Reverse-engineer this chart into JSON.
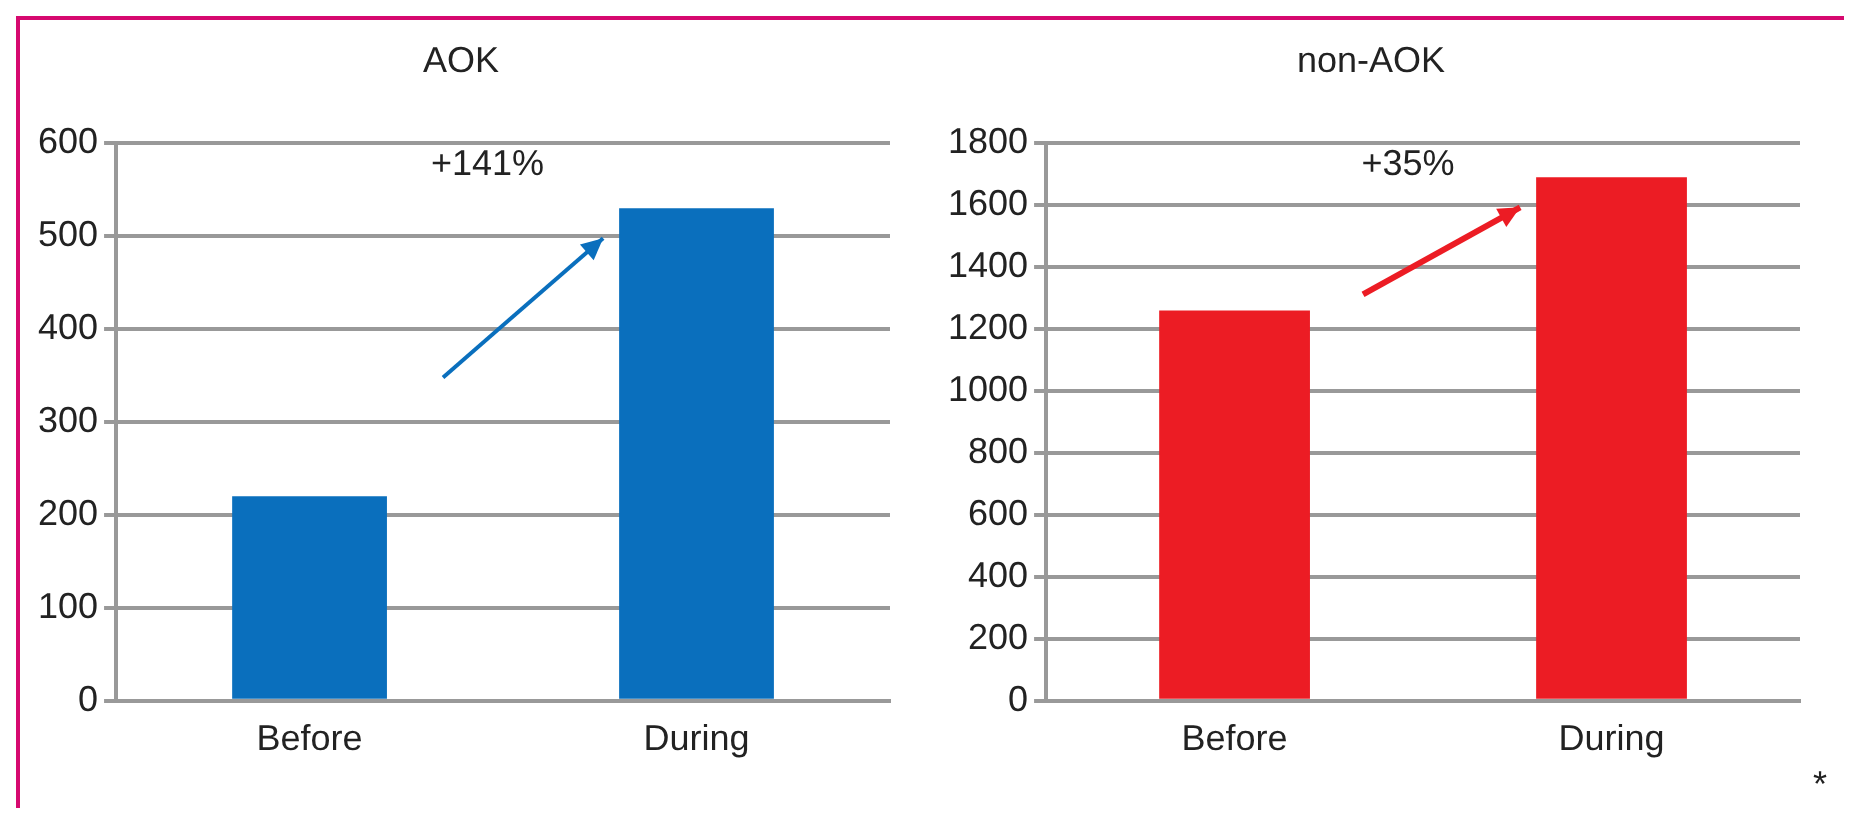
{
  "chart_data": [
    {
      "type": "bar",
      "title": "AOK",
      "categories": [
        "Before",
        "During"
      ],
      "values": [
        220,
        530
      ],
      "color": "#0a6fbd",
      "ylim": [
        0,
        600
      ],
      "yticks": [
        0,
        100,
        200,
        300,
        400,
        500,
        600
      ],
      "grid": "y",
      "legend": false,
      "annotations": [
        "+141%"
      ]
    },
    {
      "type": "bar",
      "title": "non-AOK",
      "categories": [
        "Before",
        "During"
      ],
      "values": [
        1260,
        1690
      ],
      "color": "#ec1c24",
      "ylim": [
        0,
        1800
      ],
      "yticks": [
        0,
        200,
        400,
        600,
        800,
        1000,
        1200,
        1400,
        1600,
        1800
      ],
      "grid": "y",
      "legend": false,
      "annotations": [
        "+35%",
        "*"
      ]
    }
  ]
}
